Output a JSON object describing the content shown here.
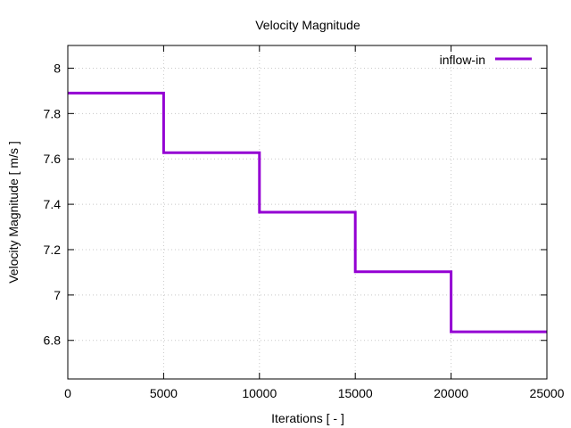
{
  "chart_data": {
    "type": "line",
    "title": "Velocity Magnitude",
    "xlabel": "Iterations [ - ]",
    "ylabel": "Velocity Magnitude [ m/s ]",
    "xlim": [
      0,
      25000
    ],
    "ylim": [
      6.63,
      8.1
    ],
    "xticks": [
      0,
      5000,
      10000,
      15000,
      20000,
      25000
    ],
    "yticks": [
      6.8,
      7,
      7.2,
      7.4,
      7.6,
      7.8,
      8
    ],
    "xtick_labels": [
      "0",
      "5000",
      "10000",
      "15000",
      "20000",
      "25000"
    ],
    "ytick_labels": [
      "6.8",
      "7",
      "7.2",
      "7.4",
      "7.6",
      "7.8",
      "8"
    ],
    "grid": true,
    "legend_position": "top-right",
    "series": [
      {
        "name": "inflow-in",
        "color": "#9400d3",
        "x": [
          0,
          5000,
          5000,
          10000,
          10000,
          15000,
          15000,
          20000,
          20000,
          25000
        ],
        "y": [
          7.89,
          7.89,
          7.627,
          7.627,
          7.365,
          7.365,
          7.103,
          7.103,
          6.838,
          6.838
        ]
      }
    ]
  }
}
